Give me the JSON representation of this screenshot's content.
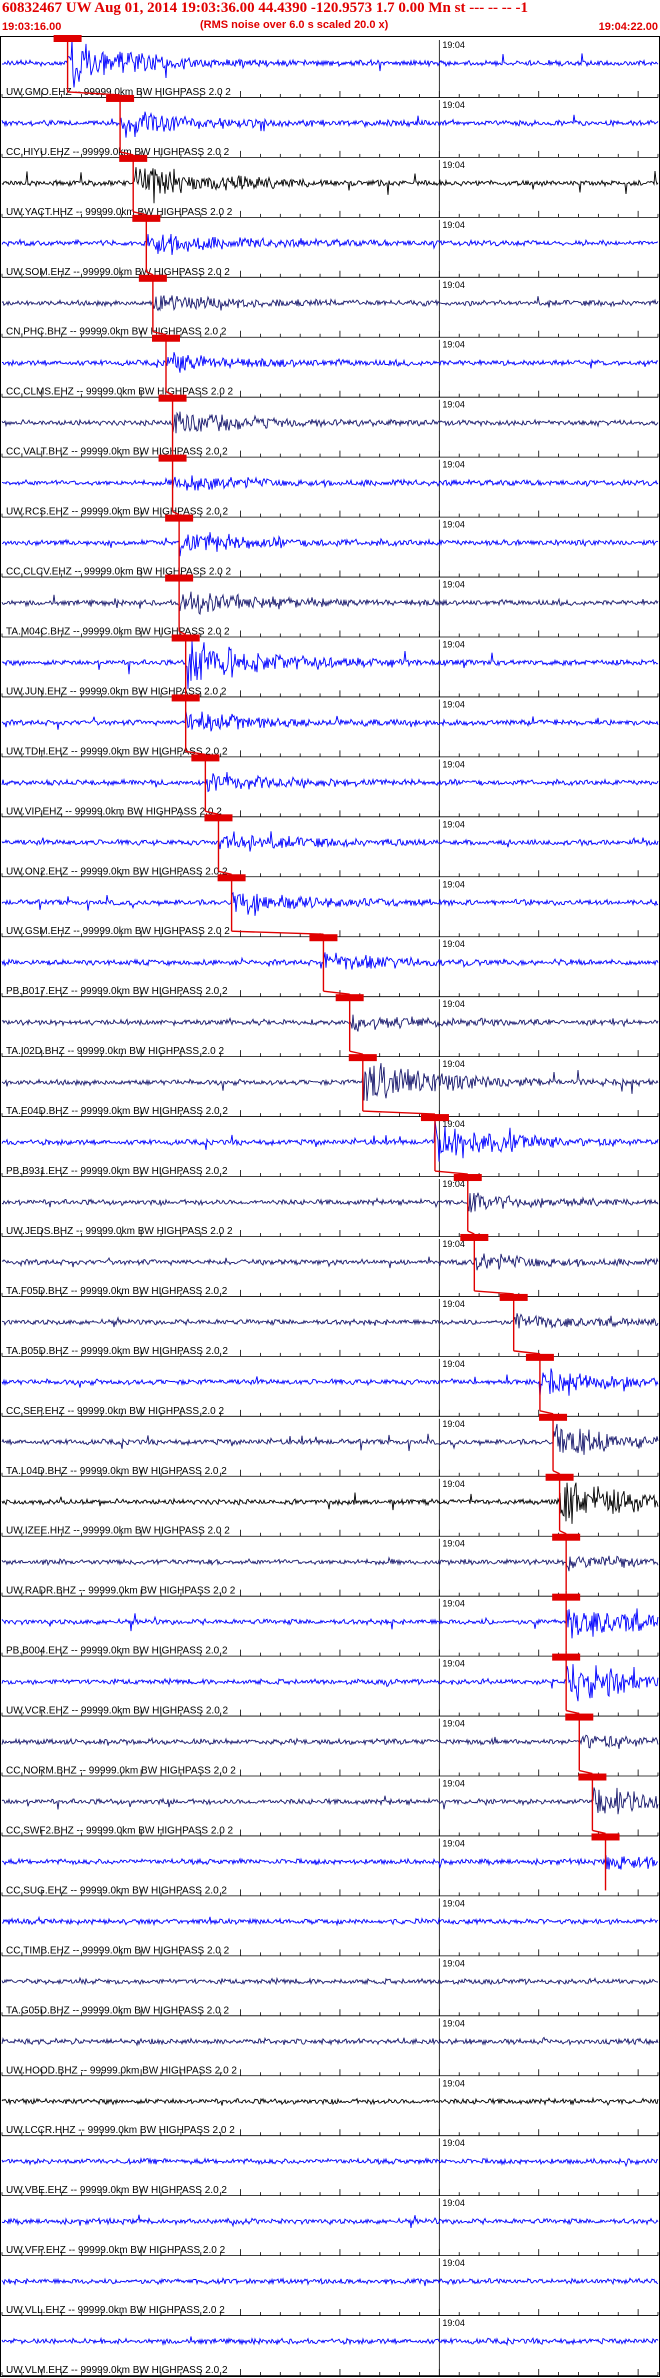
{
  "header": {
    "title": "60832467 UW Aug 01, 2014 19:03:36.00   44.4390 -120.9573  1.7 0.00 Mn st --- -- --  -1",
    "subtitle": "(RMS noise over 6.0 s scaled 20.0 x)",
    "start_time": "19:03:16.00",
    "end_time": "19:04:22.00",
    "minute_label": "19:04"
  },
  "colors": {
    "header_text": "#e00000",
    "pick_marker": "#e00000",
    "pick_box": "#e00000",
    "trace_blue": "#0000ff",
    "trace_navy": "#1a1a6e",
    "trace_black": "#000000",
    "axis": "#000000"
  },
  "traces": [
    {
      "label": "UW.GMO.EHZ -- 99999.0km BW  HIGHPASS  2.0  2",
      "color": "blue",
      "pick": 0.1,
      "amp": 0.9
    },
    {
      "label": "CC.HIYU.EHZ -- 99999.0km BW  HIGHPASS  2.0  2",
      "color": "blue",
      "pick": 0.18,
      "amp": 0.6
    },
    {
      "label": "UW.YACT.HHZ -- 99999.0km BW  HIGHPASS  2.0  2",
      "color": "black",
      "pick": 0.2,
      "amp": 0.9
    },
    {
      "label": "UW.SOM.EHZ -- 99999.0km BW  HIGHPASS  2.0  2",
      "color": "blue",
      "pick": 0.22,
      "amp": 0.5
    },
    {
      "label": "CN.PHC.BHZ -- 99999.0km BW  HIGHPASS  2.0  2",
      "color": "navy",
      "pick": 0.23,
      "amp": 0.4
    },
    {
      "label": "CC.CLMS.EHZ -- 99999.0km BW  HIGHPASS  2.0  2",
      "color": "blue",
      "pick": 0.25,
      "amp": 0.4
    },
    {
      "label": "CC.VALT.BHZ -- 99999.0km BW  HIGHPASS  2.0  2",
      "color": "navy",
      "pick": 0.26,
      "amp": 0.5
    },
    {
      "label": "UW.RCS.EHZ -- 99999.0km BW  HIGHPASS  2.0  2",
      "color": "blue",
      "pick": 0.26,
      "amp": 0.3
    },
    {
      "label": "CC.CLCV.EHZ -- 99999.0km BW  HIGHPASS  2.0  2",
      "color": "blue",
      "pick": 0.27,
      "amp": 0.5
    },
    {
      "label": "TA.M04C.BHZ -- 99999.0km BW  HIGHPASS  2.0  2",
      "color": "navy",
      "pick": 0.27,
      "amp": 0.5
    },
    {
      "label": "UW.JUN.EHZ -- 99999.0km BW  HIGHPASS  2.0  2",
      "color": "blue",
      "pick": 0.28,
      "amp": 1.0
    },
    {
      "label": "UW.TDH.EHZ -- 99999.0km BW  HIGHPASS  2.0  2",
      "color": "blue",
      "pick": 0.28,
      "amp": 0.5
    },
    {
      "label": "UW.VIP.EHZ -- 99999.0km BW  HIGHPASS  2.0  2",
      "color": "blue",
      "pick": 0.31,
      "amp": 0.4
    },
    {
      "label": "UW.ON2.EHZ -- 99999.0km BW  HIGHPASS  2.0  2",
      "color": "blue",
      "pick": 0.33,
      "amp": 0.4
    },
    {
      "label": "UW.GSM.EHZ -- 99999.0km BW  HIGHPASS  2.0  2",
      "color": "blue",
      "pick": 0.35,
      "amp": 0.6
    },
    {
      "label": "PB.B017.EHZ -- 99999.0km BW  HIGHPASS  2.0  2",
      "color": "blue",
      "pick": 0.49,
      "amp": 0.4
    },
    {
      "label": "TA.I02D.BHZ -- 99999.0km BW  HIGHPASS  2.0  2",
      "color": "navy",
      "pick": 0.53,
      "amp": 0.3
    },
    {
      "label": "TA.E04D.BHZ -- 99999.0km BW  HIGHPASS  2.0  2",
      "color": "navy",
      "pick": 0.55,
      "amp": 0.9
    },
    {
      "label": "PB.B931.EHZ -- 99999.0km BW  HIGHPASS  2.0  2",
      "color": "blue",
      "pick": 0.66,
      "amp": 0.8
    },
    {
      "label": "UW.JEDS.BHZ -- 99999.0km BW  HIGHPASS  2.0  2",
      "color": "navy",
      "pick": 0.71,
      "amp": 0.3
    },
    {
      "label": "TA.F05D.BHZ -- 99999.0km BW  HIGHPASS  2.0  2",
      "color": "navy",
      "pick": 0.72,
      "amp": 0.3
    },
    {
      "label": "TA.B05D.BHZ -- 99999.0km BW  HIGHPASS  2.0  2",
      "color": "navy",
      "pick": 0.78,
      "amp": 0.3
    },
    {
      "label": "CC.SEP.EHZ -- 99999.0km BW  HIGHPASS  2.0  2",
      "color": "blue",
      "pick": 0.82,
      "amp": 0.5
    },
    {
      "label": "TA.L04D.BHZ -- 99999.0km BW  HIGHPASS  2.0  2",
      "color": "navy",
      "pick": 0.84,
      "amp": 0.7
    },
    {
      "label": "UW.IZEE.HHZ -- 99999.0km BW  HIGHPASS  2.0  2",
      "color": "black",
      "pick": 0.85,
      "amp": 0.9
    },
    {
      "label": "UW.RADR.BHZ -- 99999.0km BW  HIGHPASS  2.0  2",
      "color": "navy",
      "pick": 0.86,
      "amp": 0.3
    },
    {
      "label": "PB.B004.EHZ -- 99999.0km BW  HIGHPASS  2.0  2",
      "color": "blue",
      "pick": 0.86,
      "amp": 0.8
    },
    {
      "label": "UW.VCR.EHZ -- 99999.0km BW  HIGHPASS  2.0  2",
      "color": "blue",
      "pick": 0.86,
      "amp": 0.8
    },
    {
      "label": "CC.NORM.BHZ -- 99999.0km BW  HIGHPASS  2.0  2",
      "color": "navy",
      "pick": 0.88,
      "amp": 0.3
    },
    {
      "label": "CC.SWF2.BHZ -- 99999.0km BW  HIGHPASS  2.0  2",
      "color": "navy",
      "pick": 0.9,
      "amp": 0.6
    },
    {
      "label": "CC.SUG.EHZ -- 99999.0km BW  HIGHPASS  2.0  2",
      "color": "blue",
      "pick": 0.92,
      "amp": 0.3
    },
    {
      "label": "CC.TIMB.EHZ -- 99999.0km BW  HIGHPASS  2.0  2",
      "color": "blue",
      "pick": null,
      "amp": 0.2
    },
    {
      "label": "TA.G05D.BHZ -- 99999.0km BW  HIGHPASS  2.0  2",
      "color": "navy",
      "pick": null,
      "amp": 0.2
    },
    {
      "label": "UW.HOOD.BHZ -- 99999.0km BW  HIGHPASS  2.0  2",
      "color": "navy",
      "pick": null,
      "amp": 0.2
    },
    {
      "label": "UW.LCCR.HHZ -- 99999.0km BW  HIGHPASS  2.0  2",
      "color": "black",
      "pick": null,
      "amp": 0.2
    },
    {
      "label": "UW.VBE.EHZ -- 99999.0km BW  HIGHPASS  2.0  2",
      "color": "blue",
      "pick": null,
      "amp": 0.2
    },
    {
      "label": "UW.VFP.EHZ -- 99999.0km BW  HIGHPASS  2.0  2",
      "color": "blue",
      "pick": null,
      "amp": 0.5
    },
    {
      "label": "UW.VLL.EHZ -- 99999.0km BW  HIGHPASS  2.0  2",
      "color": "blue",
      "pick": null,
      "amp": 0.2
    },
    {
      "label": "UW.VLM.EHZ -- 99999.0km BW  HIGHPASS  2.0  2",
      "color": "blue",
      "pick": null,
      "amp": 0.2
    }
  ]
}
